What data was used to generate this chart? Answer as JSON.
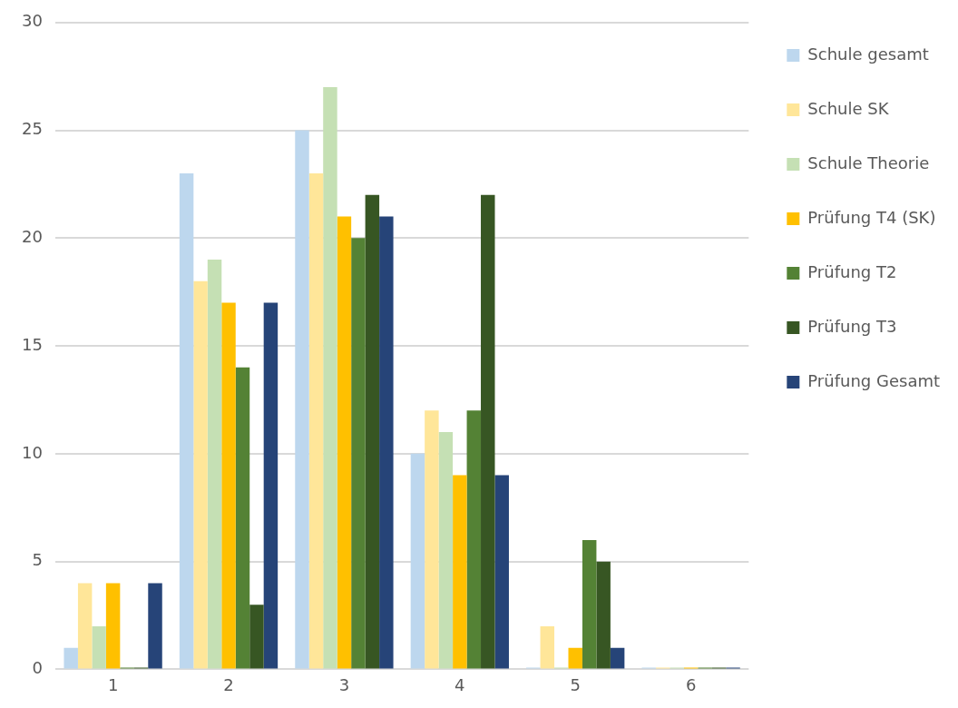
{
  "chart_data": {
    "type": "bar",
    "categories": [
      "1",
      "2",
      "3",
      "4",
      "5",
      "6"
    ],
    "series": [
      {
        "name": "Schule gesamt",
        "color": "#bdd7ee",
        "values": [
          1,
          23,
          25,
          10,
          0,
          0
        ]
      },
      {
        "name": "Schule SK",
        "color": "#ffe699",
        "values": [
          4,
          18,
          23,
          12,
          2,
          0
        ]
      },
      {
        "name": "Schule Theorie",
        "color": "#c5e0b4",
        "values": [
          2,
          19,
          27,
          11,
          0,
          0
        ]
      },
      {
        "name": "Prüfung T4 (SK)",
        "color": "#ffc000",
        "values": [
          4,
          17,
          21,
          9,
          1,
          0
        ]
      },
      {
        "name": "Prüfung T2",
        "color": "#548235",
        "values": [
          0,
          14,
          20,
          12,
          6,
          0
        ]
      },
      {
        "name": "Prüfung T3",
        "color": "#375623",
        "values": [
          0,
          3,
          22,
          22,
          5,
          0
        ]
      },
      {
        "name": "Prüfung Gesamt",
        "color": "#264478",
        "values": [
          4,
          17,
          21,
          9,
          1,
          0
        ]
      }
    ],
    "ylim": [
      0,
      30
    ],
    "yticks": [
      0,
      5,
      10,
      15,
      20,
      25,
      30
    ],
    "grid": "y",
    "legend": "right"
  }
}
